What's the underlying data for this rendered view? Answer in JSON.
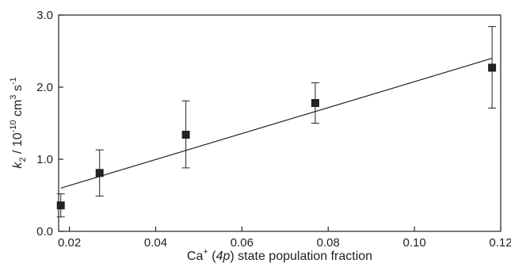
{
  "chart_data": {
    "type": "scatter",
    "xlabel": {
      "base": "Ca",
      "sup": "+",
      "mid": " (",
      "italic": "4p",
      "tail": ") state population fraction"
    },
    "ylabel": {
      "k": "k",
      "k_sub": "2",
      "p1": " / 10",
      "exp1": "-10",
      "p2": " cm",
      "exp2": "3",
      "p3": " s",
      "exp3": "-1"
    },
    "xlim": [
      0.0175,
      0.12
    ],
    "ylim": [
      0,
      3.0
    ],
    "x_ticks": [
      0.02,
      0.04,
      0.06,
      0.08,
      0.1,
      0.12
    ],
    "x_tick_labels": [
      "0.02",
      "0.04",
      "0.06",
      "0.08",
      "0.10",
      "0.12"
    ],
    "y_ticks": [
      0,
      1,
      2,
      3
    ],
    "y_tick_labels": [
      "0.0",
      "1.0",
      "2.0",
      "3.0"
    ],
    "grid": false,
    "points": [
      {
        "x": 0.018,
        "y": 0.36,
        "err_low": 0.2,
        "err_high": 0.52
      },
      {
        "x": 0.027,
        "y": 0.81,
        "err_low": 0.49,
        "err_high": 1.13
      },
      {
        "x": 0.047,
        "y": 1.34,
        "err_low": 0.88,
        "err_high": 1.81
      },
      {
        "x": 0.077,
        "y": 1.78,
        "err_low": 1.5,
        "err_high": 2.06
      },
      {
        "x": 0.118,
        "y": 2.27,
        "err_low": 1.71,
        "err_high": 2.84
      }
    ],
    "fit_line": {
      "x": [
        0.018,
        0.118
      ],
      "y": [
        0.6,
        2.4
      ]
    }
  }
}
